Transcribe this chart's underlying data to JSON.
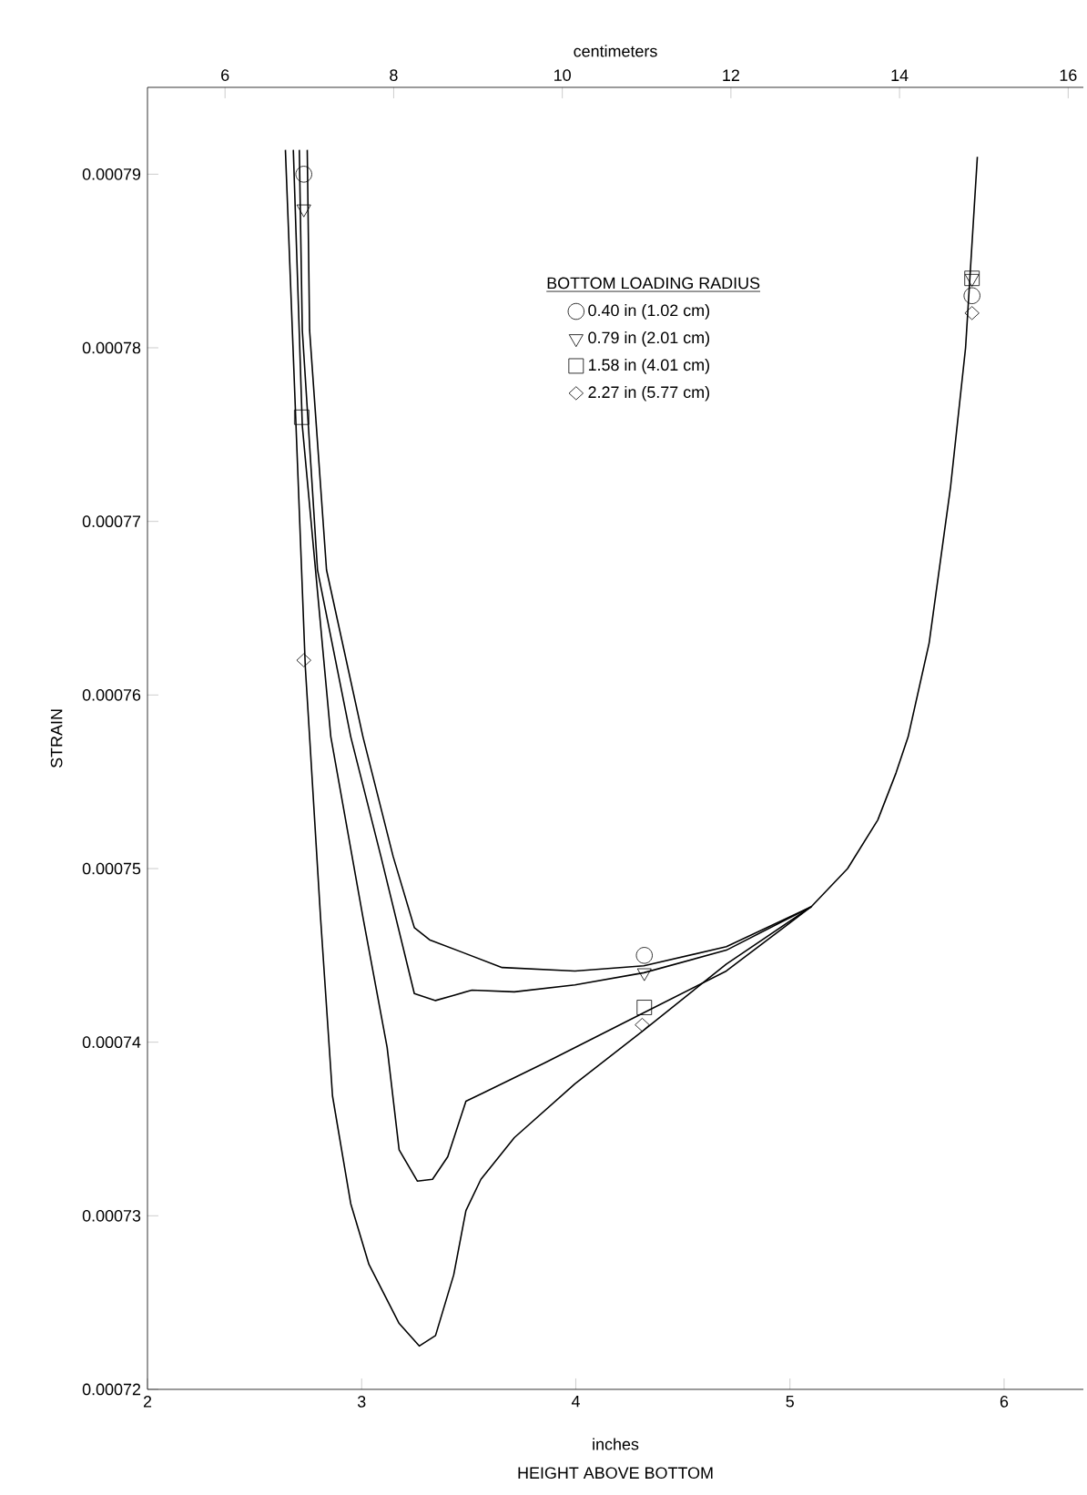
{
  "chart_data": {
    "type": "line",
    "xlabel": "HEIGHT ABOVE BOTTOM",
    "ylabel": "STRAIN",
    "x2label": "centimeters",
    "legend_title": "BOTTOM LOADING RADIUS",
    "annotations": [
      "inches"
    ],
    "xlim": [
      2,
      6.37
    ],
    "xticks": [
      2,
      3,
      4,
      5,
      6
    ],
    "x2lim": [
      5.08,
      16.18
    ],
    "x2ticks": [
      6,
      8,
      10,
      12,
      14,
      16
    ],
    "ylim": [
      0.00072,
      0.000795
    ],
    "yticks": [
      0.00072,
      0.00073,
      0.00074,
      0.00075,
      0.00076,
      0.00077,
      0.00078,
      0.00079
    ],
    "grid": false,
    "legend": "top",
    "series": [
      {
        "name": "0.40 in  (1.02 cm)",
        "type": "scatter",
        "marker": "circle",
        "color": "#000000",
        "x": [
          2.73,
          4.32,
          5.85
        ],
        "values": [
          0.00079,
          0.000745,
          0.000783
        ]
      },
      {
        "name": "0.79 in  (2.01 cm)",
        "type": "scatter",
        "marker": "triangle",
        "color": "#000000",
        "x": [
          2.73,
          4.32,
          5.85
        ],
        "values": [
          0.000788,
          0.000744,
          0.000784
        ]
      },
      {
        "name": "1.58 in  (4.01 cm)",
        "type": "scatter",
        "marker": "square",
        "color": "#000000",
        "x": [
          2.72,
          4.32,
          5.85
        ],
        "values": [
          0.000776,
          0.000742,
          0.000784
        ]
      },
      {
        "name": "2.27 in  (5.77 cm)",
        "type": "scatter",
        "marker": "diamond",
        "color": "#000000",
        "x": [
          2.73,
          4.31,
          5.85
        ],
        "values": [
          0.000762,
          0.000741,
          0.000782
        ]
      },
      {
        "color": "#000000",
        "x": [
          2.746,
          2.757,
          2.836,
          3.006,
          3.147,
          3.246,
          3.317,
          3.656,
          3.996,
          4.318,
          4.703,
          5.099,
          5.269,
          5.41,
          5.495,
          5.552,
          5.65,
          5.75,
          5.82,
          5.86,
          5.875
        ],
        "values": [
          0.0007914,
          0.000781,
          0.0007672,
          0.0007576,
          0.0007507,
          0.0007466,
          0.0007459,
          0.0007443,
          0.0007441,
          0.0007444,
          0.0007455,
          0.0007478,
          0.00075,
          0.0007528,
          0.0007555,
          0.0007576,
          0.000763,
          0.000772,
          0.00078,
          0.000788,
          0.000791
        ]
      },
      {
        "color": "#000000",
        "x": [
          2.709,
          2.723,
          2.794,
          2.949,
          3.09,
          3.246,
          3.345,
          3.43,
          3.515,
          3.713,
          3.996,
          4.318,
          4.703,
          5.099
        ],
        "values": [
          0.0007914,
          0.000781,
          0.0007672,
          0.0007576,
          0.0007507,
          0.0007428,
          0.0007424,
          0.0007427,
          0.000743,
          0.0007429,
          0.0007433,
          0.000744,
          0.0007453,
          0.0007478
        ]
      },
      {
        "color": "#000000",
        "x": [
          2.681,
          2.723,
          2.856,
          3.006,
          3.119,
          3.175,
          3.26,
          3.331,
          3.402,
          3.487,
          3.571,
          3.854,
          4.318,
          4.703,
          5.099
        ],
        "values": [
          0.0007914,
          0.0007755,
          0.0007576,
          0.0007472,
          0.0007397,
          0.0007338,
          0.000732,
          0.0007321,
          0.0007334,
          0.0007366,
          0.0007371,
          0.0007388,
          0.0007417,
          0.0007441,
          0.0007478
        ]
      },
      {
        "color": "#000000",
        "x": [
          2.644,
          2.737,
          2.757,
          2.808,
          2.864,
          2.949,
          3.034,
          3.175,
          3.269,
          3.345,
          3.43,
          3.487,
          3.557,
          3.713,
          3.996,
          4.318,
          4.703,
          5.099
        ],
        "values": [
          0.0007914,
          0.0007616,
          0.0007576,
          0.0007472,
          0.0007369,
          0.0007307,
          0.0007272,
          0.0007238,
          0.0007225,
          0.0007231,
          0.0007266,
          0.0007303,
          0.0007321,
          0.0007345,
          0.0007376,
          0.0007407,
          0.0007445,
          0.0007478
        ]
      }
    ]
  }
}
